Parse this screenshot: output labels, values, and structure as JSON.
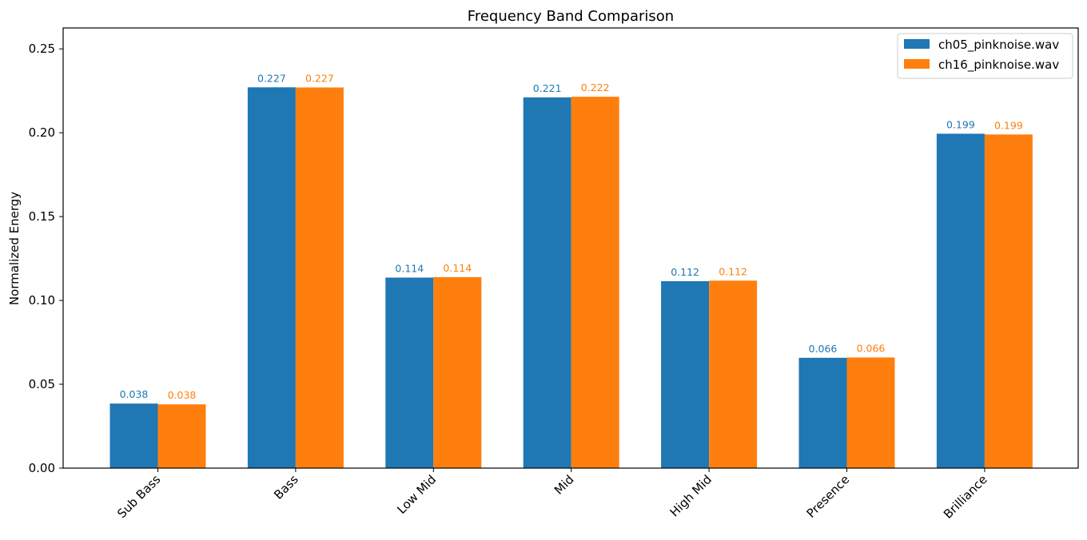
{
  "chart_data": {
    "type": "bar",
    "title": "Frequency Band Comparison",
    "xlabel": "",
    "ylabel": "Normalized Energy",
    "categories": [
      "Sub Bass",
      "Bass",
      "Low Mid",
      "Mid",
      "High Mid",
      "Presence",
      "Brilliance"
    ],
    "series": [
      {
        "name": "ch05_pinknoise.wav",
        "color": "#1f77b4",
        "values": [
          0.0385,
          0.2271,
          0.1136,
          0.2211,
          0.1115,
          0.0658,
          0.1994
        ],
        "labels": [
          "0.038",
          "0.227",
          "0.114",
          "0.221",
          "0.112",
          "0.066",
          "0.199"
        ]
      },
      {
        "name": "ch16_pinknoise.wav",
        "color": "#ff7f0e",
        "values": [
          0.038,
          0.227,
          0.1139,
          0.2215,
          0.1118,
          0.066,
          0.199
        ],
        "labels": [
          "0.038",
          "0.227",
          "0.114",
          "0.222",
          "0.112",
          "0.066",
          "0.199"
        ]
      }
    ],
    "ylim": [
      0,
      0.2625
    ],
    "yticks": [
      0.0,
      0.05,
      0.1,
      0.15,
      0.2,
      0.25
    ],
    "ytick_labels": [
      "0.00",
      "0.05",
      "0.10",
      "0.15",
      "0.20",
      "0.25"
    ],
    "grid": false,
    "legend": "top-right"
  }
}
